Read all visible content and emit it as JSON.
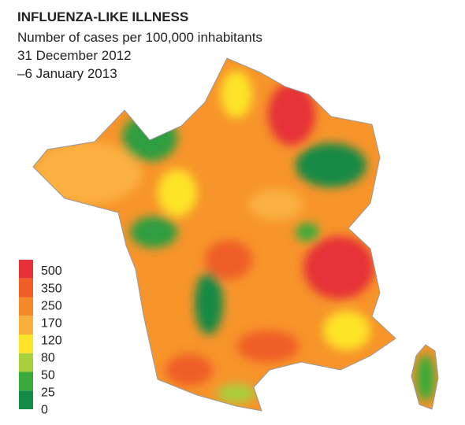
{
  "header": {
    "title": "INFLUENZA-LIKE ILLNESS",
    "subtitle": "Number of cases per 100,000 inhabitants",
    "dates": [
      "31 December 2012",
      "–6 January 2013"
    ]
  },
  "legend": {
    "labels": [
      500,
      350,
      250,
      170,
      120,
      80,
      50,
      25,
      0
    ],
    "colors": [
      "#e63137",
      "#ef5d28",
      "#f5892a",
      "#f9ad3b",
      "#fde428",
      "#a8cf3c",
      "#3aab3a",
      "#138a45"
    ]
  }
}
